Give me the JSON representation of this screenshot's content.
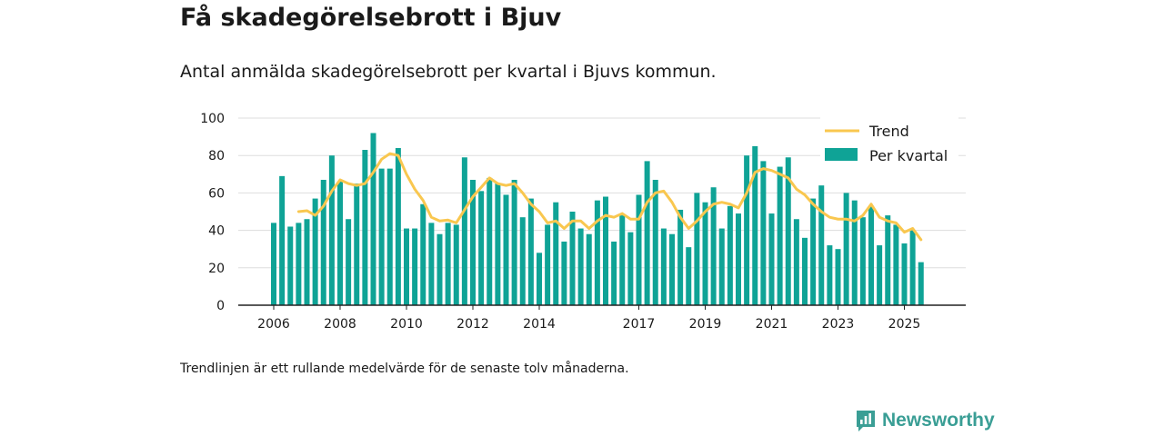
{
  "title": "Få skadegörelsebrott i Bjuv",
  "subtitle": "Antal anmälda skadegörelsebrott per kvartal i Bjuvs kommun.",
  "footnote": "Trendlinjen är ett rullande medelvärde för de senaste tolv månaderna.",
  "brand": {
    "name": "Newsworthy",
    "icon": "newsworthy-logo-icon",
    "color": "#3a9e95"
  },
  "colors": {
    "bars": "#0fa396",
    "trend": "#f9c74f",
    "grid": "#dddddd",
    "axis": "#222222"
  },
  "chart_data": {
    "type": "bar",
    "title": "Få skadegörelsebrott i Bjuv",
    "xlabel": "",
    "ylabel": "",
    "ylim": [
      0,
      100
    ],
    "yticks": [
      0,
      20,
      40,
      60,
      80,
      100
    ],
    "x_tick_labels": [
      {
        "label": "2006",
        "index": 0
      },
      {
        "label": "2008",
        "index": 8
      },
      {
        "label": "2010",
        "index": 16
      },
      {
        "label": "2012",
        "index": 24
      },
      {
        "label": "2014",
        "index": 32
      },
      {
        "label": "2017",
        "index": 44
      },
      {
        "label": "2019",
        "index": 52
      },
      {
        "label": "2021",
        "index": 60
      },
      {
        "label": "2023",
        "index": 68
      },
      {
        "label": "2025",
        "index": 76
      }
    ],
    "legend": {
      "position": "top-right",
      "entries": [
        "Trend",
        "Per kvartal"
      ]
    },
    "series": [
      {
        "name": "Per kvartal",
        "type": "bar",
        "values": [
          44,
          69,
          42,
          44,
          46,
          57,
          67,
          80,
          66,
          46,
          65,
          83,
          92,
          73,
          73,
          84,
          41,
          41,
          54,
          44,
          38,
          44,
          43,
          79,
          67,
          61,
          68,
          65,
          59,
          67,
          47,
          57,
          28,
          43,
          55,
          34,
          50,
          41,
          38,
          56,
          58,
          34,
          48,
          39,
          59,
          77,
          67,
          41,
          38,
          51,
          31,
          60,
          55,
          63,
          41,
          53,
          49,
          80,
          85,
          77,
          49,
          74,
          79,
          46,
          36,
          57,
          64,
          32,
          30,
          60,
          56,
          47,
          53,
          32,
          48,
          43,
          33,
          40,
          23
        ]
      },
      {
        "name": "Trend",
        "type": "line",
        "values": [
          null,
          null,
          null,
          50,
          50.5,
          48,
          53,
          61,
          67,
          65,
          64,
          65,
          71,
          78,
          81,
          80,
          70,
          62,
          56,
          47,
          45,
          45.5,
          44,
          51,
          58,
          63,
          68,
          65,
          64,
          65,
          60,
          54,
          50,
          44,
          45,
          41,
          45,
          45,
          41,
          45,
          48,
          47,
          49,
          46,
          46,
          55,
          60,
          61,
          55,
          47,
          41,
          45,
          50,
          54,
          55,
          54,
          52,
          60,
          71,
          73,
          72,
          70,
          68,
          62,
          59,
          54,
          50,
          47,
          46,
          46,
          45,
          48,
          54,
          47,
          45,
          44,
          39,
          41,
          35
        ]
      }
    ]
  }
}
